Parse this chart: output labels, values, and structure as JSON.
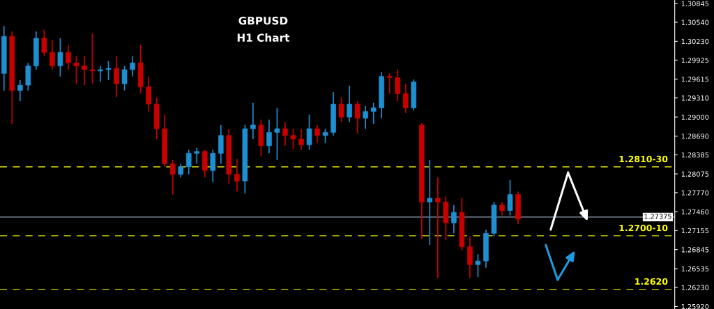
{
  "chart_data": {
    "type": "candlestick",
    "title": "GBPUSD",
    "subtitle": "H1 Chart",
    "categories": [
      null,
      null,
      null,
      null,
      null,
      null,
      null,
      null,
      null,
      null,
      null,
      null,
      null,
      null,
      null,
      null,
      null,
      null,
      null,
      null,
      null,
      null,
      null,
      null,
      null,
      null,
      null,
      null,
      null,
      null,
      null,
      null,
      null,
      null,
      null,
      null,
      null,
      null,
      null,
      null,
      null,
      null,
      null,
      null,
      null,
      null,
      null,
      null,
      null,
      null,
      null,
      null,
      null,
      null,
      null,
      null,
      null,
      null,
      null,
      null,
      null,
      null,
      null,
      null,
      null,
      null,
      null,
      null,
      null,
      null,
      null,
      null,
      null,
      null,
      null,
      null,
      null,
      null,
      null,
      null,
      null,
      null,
      null,
      null
    ],
    "ohlc": [
      [
        1.2971,
        1.3048,
        1.2943,
        1.3031
      ],
      [
        1.3031,
        1.3039,
        1.2889,
        1.2943
      ],
      [
        1.2943,
        1.296,
        1.2926,
        1.2952
      ],
      [
        1.2952,
        1.2988,
        1.2943,
        1.2983
      ],
      [
        1.2983,
        1.3039,
        1.2977,
        1.3028
      ],
      [
        1.3028,
        1.3042,
        1.2999,
        1.3005
      ],
      [
        1.3005,
        1.3025,
        1.2977,
        1.2983
      ],
      [
        1.2983,
        1.3028,
        1.2966,
        1.3005
      ],
      [
        1.3005,
        1.3017,
        1.2977,
        1.2988
      ],
      [
        1.2988,
        1.2999,
        1.2954,
        1.2983
      ],
      [
        1.2983,
        1.2999,
        1.2952,
        1.2977
      ],
      [
        1.2977,
        1.3036,
        1.2954,
        1.2975
      ],
      [
        1.2975,
        1.2983,
        1.2957,
        1.2977
      ],
      [
        1.2977,
        1.2991,
        1.296,
        1.2979
      ],
      [
        1.2979,
        1.2999,
        1.2932,
        1.2954
      ],
      [
        1.2954,
        1.2983,
        1.2943,
        1.2977
      ],
      [
        1.2977,
        1.2999,
        1.2966,
        1.2988
      ],
      [
        1.2988,
        1.3017,
        1.2938,
        1.2949
      ],
      [
        1.2949,
        1.2966,
        1.2909,
        1.2921
      ],
      [
        1.2921,
        1.2932,
        1.2864,
        1.2881
      ],
      [
        1.2881,
        1.2904,
        1.2819,
        1.2824
      ],
      [
        1.2824,
        1.283,
        1.2774,
        1.2807
      ],
      [
        1.2807,
        1.2824,
        1.2802,
        1.2819
      ],
      [
        1.2819,
        1.2847,
        1.2807,
        1.2841
      ],
      [
        1.2841,
        1.285,
        1.2824,
        1.2844
      ],
      [
        1.2844,
        1.2847,
        1.2802,
        1.2813
      ],
      [
        1.2813,
        1.2847,
        1.2794,
        1.2841
      ],
      [
        1.2841,
        1.2887,
        1.2824,
        1.287
      ],
      [
        1.287,
        1.2881,
        1.2791,
        1.2807
      ],
      [
        1.2807,
        1.2832,
        1.2779,
        1.2796
      ],
      [
        1.2796,
        1.2887,
        1.2776,
        1.2881
      ],
      [
        1.2881,
        1.2923,
        1.2864,
        1.2887
      ],
      [
        1.2887,
        1.2896,
        1.2836,
        1.2853
      ],
      [
        1.2853,
        1.2896,
        1.2841,
        1.2875
      ],
      [
        1.2875,
        1.2915,
        1.283,
        1.2881
      ],
      [
        1.2881,
        1.2892,
        1.2853,
        1.287
      ],
      [
        1.287,
        1.2881,
        1.2847,
        1.2864
      ],
      [
        1.2864,
        1.2881,
        1.2847,
        1.2855
      ],
      [
        1.2855,
        1.2904,
        1.2847,
        1.2881
      ],
      [
        1.2881,
        1.2887,
        1.2858,
        1.287
      ],
      [
        1.287,
        1.2881,
        1.2858,
        1.2875
      ],
      [
        1.2875,
        1.2941,
        1.287,
        1.2921
      ],
      [
        1.2921,
        1.2932,
        1.2892,
        1.29
      ],
      [
        1.29,
        1.2951,
        1.2892,
        1.2921
      ],
      [
        1.2921,
        1.2926,
        1.2873,
        1.2898
      ],
      [
        1.2898,
        1.2918,
        1.2881,
        1.2909
      ],
      [
        1.2909,
        1.2923,
        1.2889,
        1.2915
      ],
      [
        1.2915,
        1.2973,
        1.2898,
        1.2966
      ],
      [
        1.2966,
        1.2971,
        1.2938,
        1.2964
      ],
      [
        1.2964,
        1.2977,
        1.2926,
        1.2938
      ],
      [
        1.2938,
        1.2954,
        1.2907,
        1.2915
      ],
      [
        1.2915,
        1.2961,
        1.2911,
        1.2957
      ],
      [
        1.2887,
        1.289,
        1.2702,
        1.2762
      ],
      [
        1.2762,
        1.283,
        1.2692,
        1.2768
      ],
      [
        1.2768,
        1.2802,
        1.2638,
        1.2762
      ],
      [
        1.2762,
        1.2771,
        1.27,
        1.2728
      ],
      [
        1.2728,
        1.2757,
        1.2711,
        1.2745
      ],
      [
        1.2745,
        1.2769,
        1.2683,
        1.2689
      ],
      [
        1.2689,
        1.2706,
        1.2638,
        1.266
      ],
      [
        1.266,
        1.2677,
        1.264,
        1.2666
      ],
      [
        1.2666,
        1.2717,
        1.2655,
        1.2711
      ],
      [
        1.2711,
        1.2762,
        1.2706,
        1.2757
      ],
      [
        1.2757,
        1.2762,
        1.274,
        1.2748
      ],
      [
        1.2748,
        1.2798,
        1.274,
        1.2774
      ],
      [
        1.2774,
        1.2779,
        1.2726,
        1.2734
      ],
      null,
      null,
      null,
      null,
      null,
      null,
      null,
      null,
      null,
      null,
      null,
      null,
      null,
      null,
      null,
      null,
      null,
      null,
      null
    ],
    "colors": [
      "#1e8fd0",
      "#c80000",
      "#1e8fd0",
      "#1e8fd0",
      "#1e8fd0",
      "#c80000",
      "#c80000",
      "#1e8fd0",
      "#c80000",
      "#c80000",
      "#c80000",
      "#c80000",
      "#1e8fd0",
      "#1e8fd0",
      "#c80000",
      "#1e8fd0",
      "#1e8fd0",
      "#c80000",
      "#c80000",
      "#c80000",
      "#c80000",
      "#c80000",
      "#1e8fd0",
      "#1e8fd0",
      "#1e8fd0",
      "#c80000",
      "#1e8fd0",
      "#1e8fd0",
      "#c80000",
      "#c80000",
      "#1e8fd0",
      "#1e8fd0",
      "#c80000",
      "#1e8fd0",
      "#1e8fd0",
      "#c80000",
      "#c80000",
      "#c80000",
      "#1e8fd0",
      "#c80000",
      "#1e8fd0",
      "#1e8fd0",
      "#c80000",
      "#1e8fd0",
      "#c80000",
      "#1e8fd0",
      "#1e8fd0",
      "#1e8fd0",
      "#c80000",
      "#c80000",
      "#c80000",
      "#1e8fd0",
      "#c80000",
      "#1e8fd0",
      "#c80000",
      "#c80000",
      "#1e8fd0",
      "#c80000",
      "#c80000",
      "#1e8fd0",
      "#1e8fd0",
      "#1e8fd0",
      "#c80000",
      "#1e8fd0",
      "#c80000",
      null,
      null,
      null,
      null,
      null,
      null,
      null,
      null,
      null,
      null,
      null,
      null,
      null,
      null,
      null,
      null,
      null,
      null,
      null
    ],
    "ylim": [
      1.2588,
      1.30902
    ],
    "yticks": [
      {
        "value": 1.30845,
        "label": "1.30845"
      },
      {
        "value": 1.3054,
        "label": "1.30540"
      },
      {
        "value": 1.3023,
        "label": "1.30230"
      },
      {
        "value": 1.29925,
        "label": "1.29925"
      },
      {
        "value": 1.29615,
        "label": "1.29615"
      },
      {
        "value": 1.2931,
        "label": "1.29310"
      },
      {
        "value": 1.29,
        "label": "1.29000"
      },
      {
        "value": 1.2869,
        "label": "1.28690"
      },
      {
        "value": 1.28385,
        "label": "1.28385"
      },
      {
        "value": 1.28075,
        "label": "1.28075"
      },
      {
        "value": 1.2777,
        "label": "1.27770"
      },
      {
        "value": 1.2746,
        "label": "1.27460"
      },
      {
        "value": 1.27155,
        "label": "1.27155"
      },
      {
        "value": 1.26845,
        "label": "1.26845"
      },
      {
        "value": 1.26535,
        "label": "1.26535"
      },
      {
        "value": 1.2623,
        "label": "1.26230"
      },
      {
        "value": 1.2592,
        "label": "1.25920"
      }
    ],
    "annotations": [
      {
        "text": "1.2810-30",
        "y": 1.2819
      },
      {
        "text": "1.2700-10",
        "y": 1.2707
      }
    ],
    "ref_lines": [
      {
        "axis": "y",
        "value": 1.2819,
        "color": "#e6e600",
        "line_style": "dashed"
      },
      {
        "axis": "y",
        "value": 1.2707,
        "color": "#b8b800",
        "line_style": "dashed"
      },
      {
        "axis": "y",
        "value": 1.262,
        "label": "1.2620",
        "color": "#b8b800",
        "line_style": "dashed"
      },
      {
        "axis": "y",
        "value": 1.27375,
        "label": "1.27375",
        "color": "#8fa0b8",
        "line_style": "solid"
      }
    ],
    "tick_labels": "y",
    "grid": false
  }
}
